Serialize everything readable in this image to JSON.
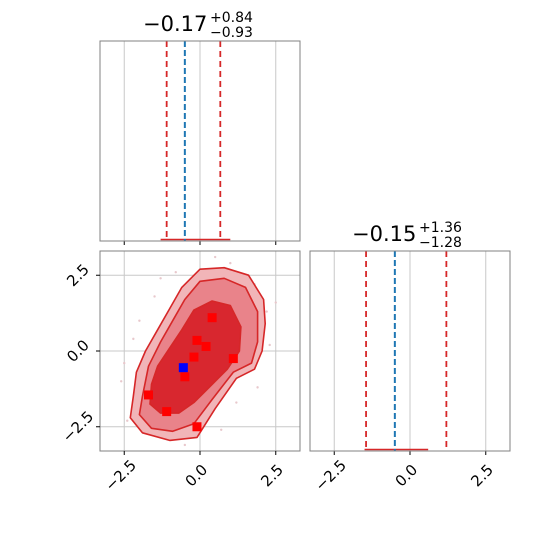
{
  "chart_data": [
    {
      "type": "histogram",
      "panel": "top-left",
      "title": {
        "median": "−0.17",
        "plus": "+0.84",
        "minus": "−0.93"
      },
      "xlim": [
        -3.3,
        3.3
      ],
      "grid": true,
      "quantile_lines": [
        -1.1,
        0.67
      ],
      "truth_line": -0.5,
      "mass_range": [
        -1.3,
        1.0
      ],
      "colors": {
        "quantile": "#d62728",
        "truth": "#1f77b4",
        "hist": "#d62728"
      }
    },
    {
      "type": "histogram",
      "panel": "bottom-right",
      "title": {
        "median": "−0.15",
        "plus": "+1.36",
        "minus": "−1.28"
      },
      "xlim": [
        -3.3,
        3.3
      ],
      "xticks": [
        "−2.5",
        "0.0",
        "2.5"
      ],
      "xtick_values": [
        -2.5,
        0.0,
        2.5
      ],
      "grid": true,
      "quantile_lines": [
        -1.45,
        1.2
      ],
      "truth_line": -0.5,
      "mass_range": [
        -1.5,
        0.6
      ],
      "colors": {
        "quantile": "#d62728",
        "truth": "#1f77b4",
        "hist": "#d62728"
      }
    },
    {
      "type": "scatter",
      "panel": "bottom-left",
      "subtype": "2d-contour-density",
      "xlim": [
        -3.3,
        3.3
      ],
      "ylim": [
        -3.3,
        3.3
      ],
      "xticks": [
        "−2.5",
        "0.0",
        "2.5"
      ],
      "xtick_values": [
        -2.5,
        0.0,
        2.5
      ],
      "yticks": [
        "−2.5",
        "0.0",
        "2.5"
      ],
      "ytick_values": [
        -2.5,
        0.0,
        2.5
      ],
      "grid": true,
      "contours": [
        {
          "level": "outer",
          "fill": "#f1b5b8",
          "points": [
            [
              -2.2,
              -1.5
            ],
            [
              -2.3,
              -2.2
            ],
            [
              -1.9,
              -2.7
            ],
            [
              -1.0,
              -2.95
            ],
            [
              -0.1,
              -2.85
            ],
            [
              0.5,
              -1.9
            ],
            [
              1.2,
              -0.9
            ],
            [
              1.8,
              -0.6
            ],
            [
              2.05,
              0.0
            ],
            [
              2.15,
              0.9
            ],
            [
              2.1,
              1.7
            ],
            [
              1.6,
              2.5
            ],
            [
              0.8,
              2.75
            ],
            [
              0.0,
              2.7
            ],
            [
              -0.6,
              2.1
            ],
            [
              -1.0,
              1.4
            ],
            [
              -1.4,
              0.7
            ],
            [
              -1.8,
              0.0
            ],
            [
              -2.1,
              -0.7
            ]
          ]
        },
        {
          "level": "middle",
          "fill": "#e9838a",
          "points": [
            [
              -1.9,
              -1.5
            ],
            [
              -2.0,
              -2.1
            ],
            [
              -1.6,
              -2.55
            ],
            [
              -0.9,
              -2.65
            ],
            [
              -0.2,
              -2.4
            ],
            [
              0.4,
              -1.6
            ],
            [
              1.1,
              -0.7
            ],
            [
              1.7,
              -0.4
            ],
            [
              1.9,
              0.3
            ],
            [
              1.9,
              1.3
            ],
            [
              1.5,
              2.1
            ],
            [
              0.8,
              2.4
            ],
            [
              0.0,
              2.3
            ],
            [
              -0.5,
              1.7
            ],
            [
              -0.9,
              1.0
            ],
            [
              -1.3,
              0.3
            ],
            [
              -1.7,
              -0.5
            ]
          ]
        },
        {
          "level": "inner",
          "fill": "#d8272f",
          "points": [
            [
              -1.6,
              -1.1
            ],
            [
              -1.65,
              -1.75
            ],
            [
              -1.3,
              -2.05
            ],
            [
              -0.7,
              -2.05
            ],
            [
              -0.2,
              -1.7
            ],
            [
              0.3,
              -1.2
            ],
            [
              0.9,
              -0.6
            ],
            [
              1.3,
              0.0
            ],
            [
              1.35,
              0.8
            ],
            [
              1.0,
              1.5
            ],
            [
              0.4,
              1.65
            ],
            [
              -0.2,
              1.35
            ],
            [
              -0.6,
              0.7
            ],
            [
              -1.0,
              0.1
            ],
            [
              -1.4,
              -0.5
            ]
          ]
        }
      ],
      "scatter_points": [
        {
          "x": 0.4,
          "y": 1.1,
          "color": "#ff0000"
        },
        {
          "x": -0.1,
          "y": 0.35,
          "color": "#ff0000"
        },
        {
          "x": 0.2,
          "y": 0.15,
          "color": "#ff0000"
        },
        {
          "x": -0.2,
          "y": -0.2,
          "color": "#ff0000"
        },
        {
          "x": 1.1,
          "y": -0.25,
          "color": "#ff0000"
        },
        {
          "x": -0.5,
          "y": -0.85,
          "color": "#ff0000"
        },
        {
          "x": -1.7,
          "y": -1.45,
          "color": "#ff0000"
        },
        {
          "x": -1.1,
          "y": -2.0,
          "color": "#ff0000"
        },
        {
          "x": -0.1,
          "y": -2.5,
          "color": "#ff0000"
        },
        {
          "x": -0.55,
          "y": -0.55,
          "color": "#0000ff"
        }
      ]
    }
  ]
}
